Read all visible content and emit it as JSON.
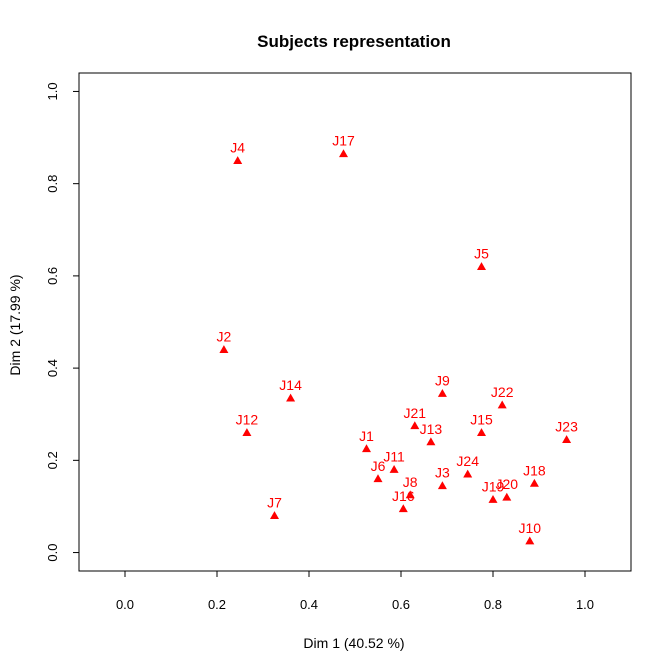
{
  "chart_data": {
    "type": "scatter",
    "title": "Subjects representation",
    "xlabel": "Dim 1 (40.52 %)",
    "ylabel": "Dim 2 (17.99 %)",
    "xlim": [
      -0.1,
      1.1
    ],
    "ylim": [
      -0.04,
      1.04
    ],
    "xticks": [
      0.0,
      0.2,
      0.4,
      0.6,
      0.8,
      1.0
    ],
    "xtick_labels": [
      "0.0",
      "0.2",
      "0.4",
      "0.6",
      "0.8",
      "1.0"
    ],
    "yticks": [
      0.0,
      0.2,
      0.4,
      0.6,
      0.8,
      1.0
    ],
    "ytick_labels": [
      "0.0",
      "0.2",
      "0.4",
      "0.6",
      "0.8",
      "1.0"
    ],
    "grid": false,
    "marker": "triangle",
    "color": "#ff0000",
    "points": [
      {
        "label": "J1",
        "x": 0.525,
        "y": 0.225
      },
      {
        "label": "J2",
        "x": 0.215,
        "y": 0.44
      },
      {
        "label": "J3",
        "x": 0.69,
        "y": 0.145
      },
      {
        "label": "J4",
        "x": 0.245,
        "y": 0.85
      },
      {
        "label": "J5",
        "x": 0.775,
        "y": 0.62
      },
      {
        "label": "J6",
        "x": 0.55,
        "y": 0.16
      },
      {
        "label": "J7",
        "x": 0.325,
        "y": 0.08
      },
      {
        "label": "J8",
        "x": 0.62,
        "y": 0.125
      },
      {
        "label": "J9",
        "x": 0.69,
        "y": 0.345
      },
      {
        "label": "J10",
        "x": 0.88,
        "y": 0.025
      },
      {
        "label": "J11",
        "x": 0.585,
        "y": 0.18
      },
      {
        "label": "J12",
        "x": 0.265,
        "y": 0.26
      },
      {
        "label": "J13",
        "x": 0.665,
        "y": 0.24
      },
      {
        "label": "J14",
        "x": 0.36,
        "y": 0.335
      },
      {
        "label": "J15",
        "x": 0.775,
        "y": 0.26
      },
      {
        "label": "J16",
        "x": 0.605,
        "y": 0.095
      },
      {
        "label": "J17",
        "x": 0.475,
        "y": 0.865
      },
      {
        "label": "J18",
        "x": 0.89,
        "y": 0.15
      },
      {
        "label": "J19",
        "x": 0.8,
        "y": 0.115
      },
      {
        "label": "J20",
        "x": 0.83,
        "y": 0.12
      },
      {
        "label": "J21",
        "x": 0.63,
        "y": 0.275
      },
      {
        "label": "J22",
        "x": 0.82,
        "y": 0.32
      },
      {
        "label": "J23",
        "x": 0.96,
        "y": 0.245
      },
      {
        "label": "J24",
        "x": 0.745,
        "y": 0.17
      }
    ]
  }
}
